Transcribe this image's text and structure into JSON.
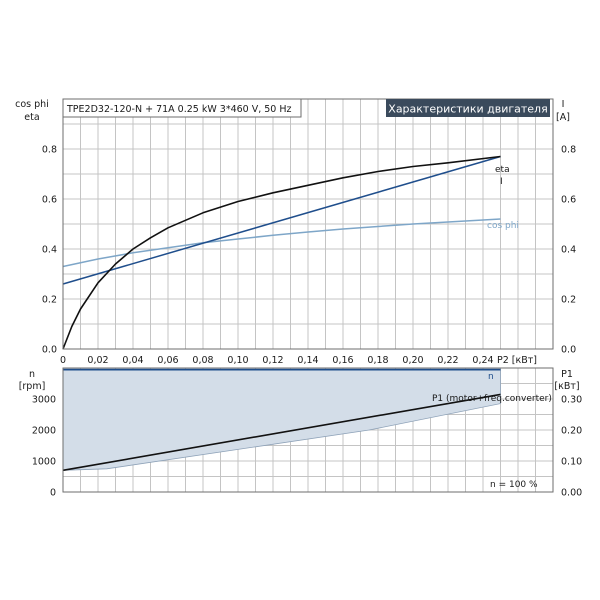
{
  "header": {
    "info": "TPE2D32-120-N + 71A   0.25 kW   3*460 V, 50 Hz",
    "title": "Характеристики двигателя"
  },
  "colors": {
    "eta": "#111111",
    "I": "#1f4e8c",
    "cos_phi": "#7ea6c8",
    "n": "#1f4e8c",
    "P1": "#111111",
    "area_fill": "#d3dde8",
    "title_bg": "#3a4a5c"
  },
  "chart_data": [
    {
      "type": "line",
      "name": "upper",
      "x_label": "P2 [кВт]",
      "xlim": [
        0,
        0.28
      ],
      "x_ticks": [
        "0",
        "0,02",
        "0,04",
        "0,06",
        "0,08",
        "0,10",
        "0,12",
        "0,14",
        "0,16",
        "0,18",
        "0,20",
        "0,22",
        "0,24"
      ],
      "x_tick_values": [
        0,
        0.02,
        0.04,
        0.06,
        0.08,
        0.1,
        0.12,
        0.14,
        0.16,
        0.18,
        0.2,
        0.22,
        0.24
      ],
      "left_axis": {
        "label_line1": "cos phi",
        "label_line2": "eta",
        "ylim": [
          0,
          1.0
        ],
        "ticks": [
          "0.0",
          "0.2",
          "0.4",
          "0.6",
          "0.8"
        ],
        "tick_values": [
          0,
          0.2,
          0.4,
          0.6,
          0.8
        ]
      },
      "right_axis": {
        "label_line1": "I",
        "label_line2": "[A]",
        "ylim": [
          0,
          1.0
        ],
        "ticks": [
          "0.0",
          "0.2",
          "0.4",
          "0.6",
          "0.8"
        ],
        "tick_values": [
          0,
          0.2,
          0.4,
          0.6,
          0.8
        ]
      },
      "grid": true,
      "series": [
        {
          "name": "eta",
          "axis": "left",
          "color_key": "eta",
          "x": [
            0,
            0.005,
            0.01,
            0.02,
            0.03,
            0.04,
            0.05,
            0.06,
            0.08,
            0.1,
            0.12,
            0.14,
            0.16,
            0.18,
            0.2,
            0.22,
            0.25
          ],
          "y": [
            0,
            0.09,
            0.16,
            0.265,
            0.34,
            0.4,
            0.445,
            0.485,
            0.545,
            0.59,
            0.625,
            0.655,
            0.685,
            0.71,
            0.73,
            0.745,
            0.77
          ]
        },
        {
          "name": "I",
          "axis": "right",
          "color_key": "I",
          "x": [
            0,
            0.25
          ],
          "y": [
            0.26,
            0.77
          ]
        },
        {
          "name": "cos phi",
          "axis": "left",
          "color_key": "cos_phi",
          "x": [
            0,
            0.02,
            0.04,
            0.06,
            0.08,
            0.1,
            0.12,
            0.14,
            0.16,
            0.18,
            0.2,
            0.22,
            0.25
          ],
          "y": [
            0.33,
            0.36,
            0.385,
            0.405,
            0.425,
            0.44,
            0.455,
            0.468,
            0.48,
            0.49,
            0.5,
            0.508,
            0.52
          ]
        }
      ]
    },
    {
      "type": "area",
      "name": "lower",
      "xlim": [
        0,
        0.28
      ],
      "left_axis": {
        "label_line1": "n",
        "label_line2": "[rpm]",
        "ylim": [
          0,
          4000
        ],
        "ticks": [
          "0",
          "1000",
          "2000",
          "3000"
        ],
        "tick_values": [
          0,
          1000,
          2000,
          3000
        ]
      },
      "right_axis": {
        "label_line1": "P1",
        "label_line2": "[кВт]",
        "ylim": [
          0,
          0.4
        ],
        "ticks": [
          "0.00",
          "0.10",
          "0.20",
          "0.30"
        ],
        "tick_values": [
          0,
          0.1,
          0.2,
          0.3
        ]
      },
      "grid": true,
      "series": [
        {
          "name": "n",
          "axis": "left",
          "color_key": "n",
          "x": [
            0,
            0.25
          ],
          "y": [
            3950,
            3950
          ]
        },
        {
          "name": "P1 (motor+freq.converter)",
          "axis": "right",
          "color_key": "P1",
          "x": [
            0,
            0.25
          ],
          "y": [
            0.07,
            0.315
          ]
        }
      ],
      "area": {
        "upper": {
          "axis": "left",
          "x": [
            0,
            0.25
          ],
          "y": [
            3950,
            3950
          ]
        },
        "lower": {
          "axis": "right",
          "x": [
            0,
            0.025,
            0.175,
            0.25
          ],
          "y": [
            0.07,
            0.075,
            0.2,
            0.285
          ]
        }
      },
      "annotation": "n = 100 %"
    }
  ]
}
